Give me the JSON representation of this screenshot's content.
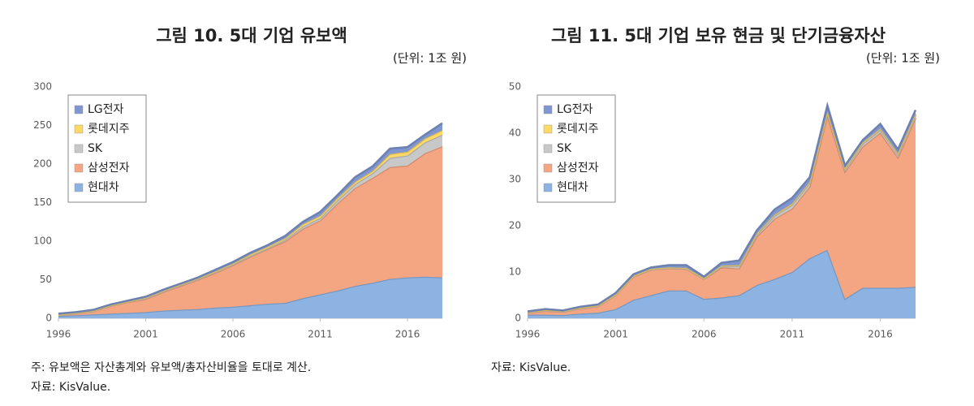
{
  "chart_data": [
    {
      "type": "stacked-area",
      "title": "그림 10. 5대 기업 유보액",
      "subtitle": "(단위: 1조 원)",
      "notes": [
        "주: 유보액은 자산총계와 유보액/총자산비율을 토대로 계산.",
        "자료: KisValue."
      ],
      "x": [
        1996,
        1997,
        1998,
        1999,
        2000,
        2001,
        2002,
        2003,
        2004,
        2005,
        2006,
        2007,
        2008,
        2009,
        2010,
        2011,
        2012,
        2013,
        2014,
        2015,
        2016,
        2017,
        2018
      ],
      "xlim": [
        1996,
        2018
      ],
      "xticks": [
        1996,
        2001,
        2006,
        2011,
        2016
      ],
      "ylim": [
        0,
        300
      ],
      "yticks": [
        0,
        50,
        100,
        150,
        200,
        250,
        300
      ],
      "legend": "upper-left",
      "series": [
        {
          "name": "현대차",
          "color": "#8db3e2",
          "values": [
            3,
            4,
            5,
            6,
            7,
            8,
            10,
            11,
            12,
            14,
            15,
            17,
            19,
            20,
            26,
            31,
            36,
            42,
            46,
            51,
            53,
            54,
            53
          ]
        },
        {
          "name": "삼성전자",
          "color": "#f4a582",
          "values": [
            1,
            2,
            4,
            10,
            14,
            17,
            24,
            31,
            38,
            45,
            54,
            63,
            71,
            80,
            90,
            96,
            113,
            127,
            136,
            145,
            145,
            160,
            170
          ]
        },
        {
          "name": "SK",
          "color": "#c8c8c8",
          "values": [
            0.5,
            0.5,
            0.5,
            0.5,
            0.5,
            1,
            1,
            1,
            1,
            1,
            1,
            1,
            1,
            2,
            3,
            3,
            4,
            5,
            6,
            12,
            13,
            14,
            15
          ]
        },
        {
          "name": "롯데지주",
          "color": "#ffd966",
          "values": [
            0.5,
            0.5,
            0.5,
            0.5,
            0.5,
            1,
            1,
            1,
            1,
            1,
            1,
            2,
            2,
            2,
            3,
            3,
            3,
            3,
            3,
            5,
            5,
            5,
            6
          ]
        },
        {
          "name": "LG전자",
          "color": "#7f96d0",
          "values": [
            1,
            1,
            1,
            1,
            1,
            1,
            1,
            1,
            1,
            2,
            2,
            2,
            2,
            3,
            3,
            5,
            4,
            6,
            6,
            7,
            6,
            5,
            9
          ]
        }
      ]
    },
    {
      "type": "stacked-area",
      "title": "그림 11. 5대 기업 보유 현금 및 단기금융자산",
      "subtitle": "(단위: 1조 원)",
      "notes": [
        "자료: KisValue."
      ],
      "x": [
        1996,
        1997,
        1998,
        1999,
        2000,
        2001,
        2002,
        2003,
        2004,
        2005,
        2006,
        2007,
        2008,
        2009,
        2010,
        2011,
        2012,
        2013,
        2014,
        2015,
        2016,
        2017,
        2018
      ],
      "xlim": [
        1996,
        2018
      ],
      "xticks": [
        1996,
        2001,
        2006,
        2011,
        2016
      ],
      "ylim": [
        0,
        50
      ],
      "yticks": [
        0,
        10,
        20,
        30,
        40,
        50
      ],
      "legend": "upper-left",
      "series": [
        {
          "name": "현대차",
          "color": "#8db3e2",
          "values": [
            0.8,
            0.8,
            0.7,
            1,
            1.2,
            2,
            4,
            5,
            6,
            6,
            4.2,
            4.5,
            5,
            7.2,
            8.5,
            10,
            13,
            14.8,
            4.2,
            6.6,
            6.6,
            6.6,
            6.8
          ]
        },
        {
          "name": "삼성전자",
          "color": "#f4a582",
          "values": [
            0.4,
            0.8,
            0.7,
            1.1,
            1.4,
            3,
            5,
            5.5,
            4.8,
            4.7,
            4.3,
            6.5,
            5.8,
            10.5,
            13,
            13.7,
            15.5,
            29,
            27.5,
            30.5,
            33.5,
            28.2,
            36.5
          ]
        },
        {
          "name": "SK",
          "color": "#c8c8c8",
          "values": [
            0.1,
            0.1,
            0.1,
            0.1,
            0.1,
            0.1,
            0.1,
            0.1,
            0.1,
            0.1,
            0.1,
            0.2,
            0.5,
            0.4,
            0.6,
            0.8,
            0.7,
            0.6,
            0.5,
            0.6,
            0.6,
            0.6,
            0.6
          ]
        },
        {
          "name": "롯데지주",
          "color": "#ffd966",
          "values": [
            0.1,
            0.1,
            0.1,
            0.1,
            0.1,
            0.1,
            0.1,
            0.1,
            0.1,
            0.1,
            0.1,
            0.2,
            0.2,
            0.3,
            0.3,
            0.3,
            0.3,
            0.3,
            0.3,
            0.3,
            0.3,
            0.3,
            0.3
          ]
        },
        {
          "name": "LG전자",
          "color": "#7f96d0",
          "values": [
            0.1,
            0.2,
            0.1,
            0.2,
            0.2,
            0.3,
            0.3,
            0.3,
            0.5,
            0.6,
            0.3,
            0.6,
            1,
            0.6,
            1.1,
            1.2,
            1,
            1.3,
            0.5,
            0.5,
            1,
            0.8,
            0.8
          ]
        }
      ]
    }
  ]
}
